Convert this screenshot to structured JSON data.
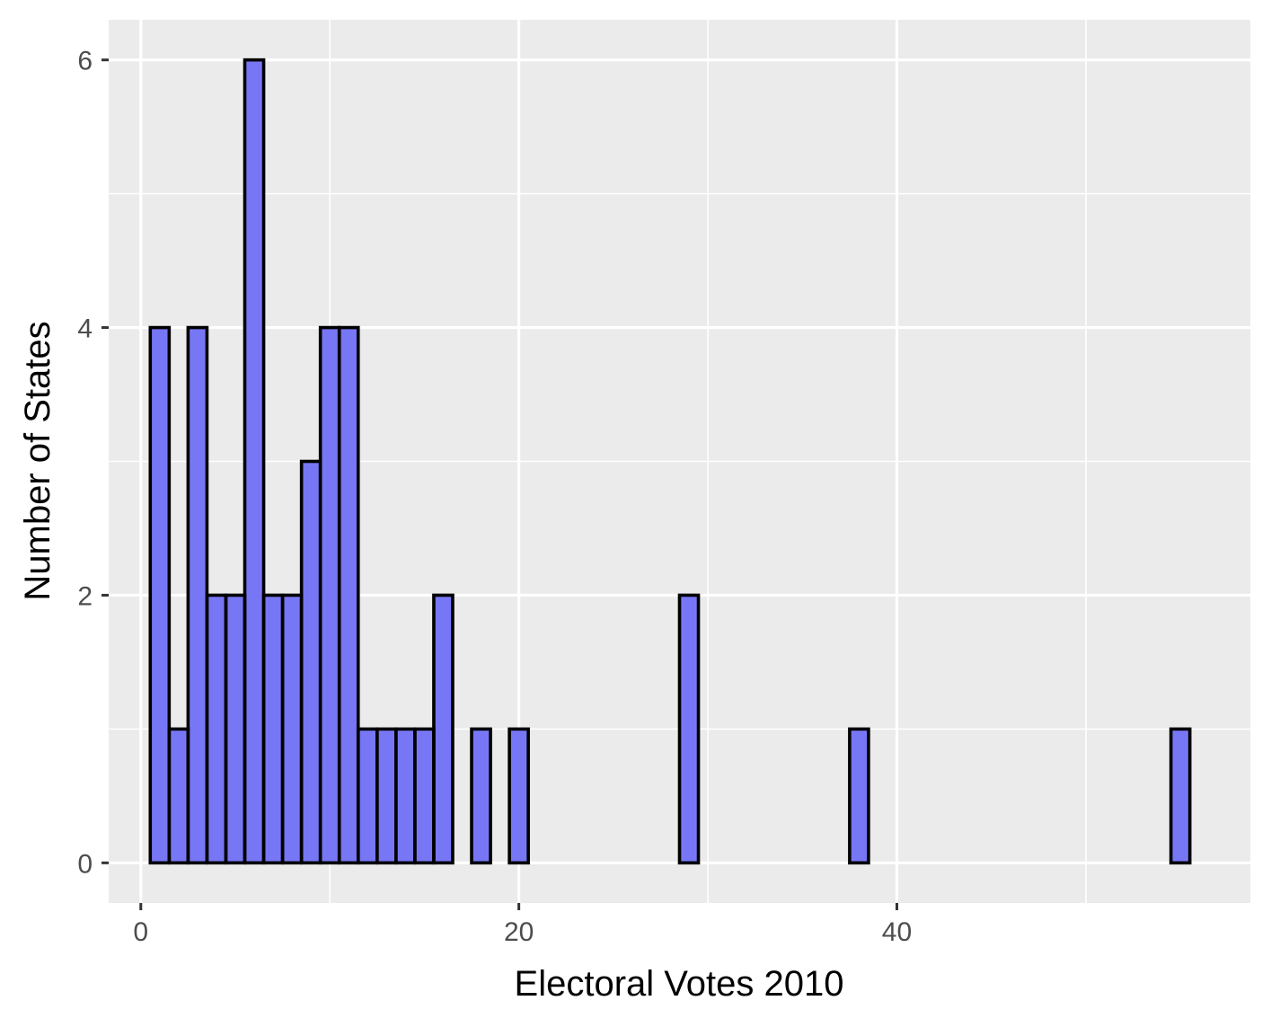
{
  "chart_data": {
    "type": "bar",
    "subtype": "histogram",
    "title": "",
    "xlabel": "Electoral Votes 2010",
    "ylabel": "Number of States",
    "bin_width": 1,
    "x": [
      1,
      2,
      3,
      4,
      5,
      6,
      7,
      8,
      9,
      10,
      11,
      12,
      13,
      14,
      15,
      16,
      17,
      18,
      19,
      20,
      21,
      22,
      23,
      24,
      25,
      26,
      27,
      28,
      29,
      30,
      31,
      32,
      33,
      34,
      35,
      36,
      37,
      38,
      39,
      40,
      41,
      42,
      43,
      44,
      45,
      46,
      47,
      48,
      49,
      50,
      51,
      52,
      53,
      54,
      55
    ],
    "values": [
      4,
      1,
      4,
      2,
      2,
      6,
      2,
      2,
      3,
      4,
      4,
      1,
      1,
      1,
      1,
      2,
      0,
      1,
      0,
      1,
      0,
      0,
      0,
      0,
      0,
      0,
      0,
      0,
      2,
      0,
      0,
      0,
      0,
      0,
      0,
      0,
      0,
      1,
      0,
      0,
      0,
      0,
      0,
      0,
      0,
      0,
      0,
      0,
      0,
      0,
      0,
      0,
      0,
      0,
      1
    ],
    "xlim": [
      -1.7,
      58.7
    ],
    "ylim": [
      -0.3,
      6.3
    ],
    "x_ticks": [
      0,
      20,
      40
    ],
    "x_tick_labels": [
      "0",
      "20",
      "40"
    ],
    "x_minor_ticks": [
      10,
      30,
      50
    ],
    "y_ticks": [
      0,
      2,
      4,
      6
    ],
    "y_tick_labels": [
      "0",
      "2",
      "4",
      "6"
    ],
    "y_minor_ticks": [
      1,
      3,
      5
    ],
    "grid": true,
    "legend": "none",
    "colors": {
      "fill": "#7777f5",
      "outline": "#000000",
      "panel": "#ebebeb",
      "grid": "#ffffff",
      "tick_text": "#4d4d4d",
      "tick_mark": "#333333",
      "title_text": "#000000"
    }
  }
}
